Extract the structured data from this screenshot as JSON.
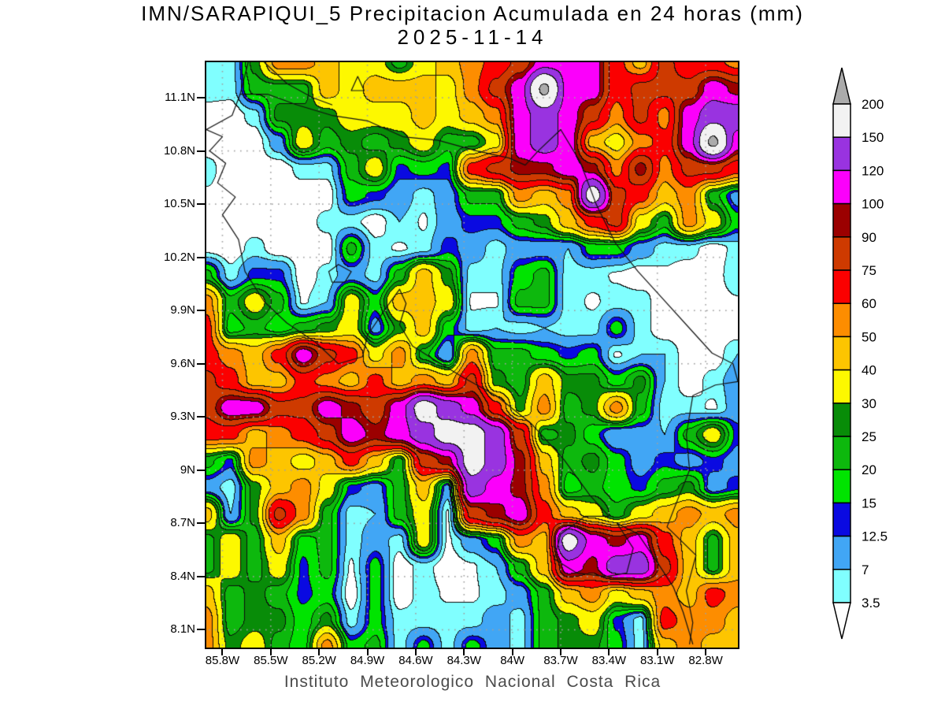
{
  "title": {
    "line1": "IMN/SARAPIQUI_5 Precipitacion Acumulada en 24 horas (mm)",
    "line2": "2025-11-14"
  },
  "footer": "Instituto Meteorologico Nacional Costa Rica",
  "axes": {
    "lat": [
      {
        "label": "11.1N",
        "value": 11.1
      },
      {
        "label": "10.8N",
        "value": 10.8
      },
      {
        "label": "10.5N",
        "value": 10.5
      },
      {
        "label": "10.2N",
        "value": 10.2
      },
      {
        "label": "9.9N",
        "value": 9.9
      },
      {
        "label": "9.6N",
        "value": 9.6
      },
      {
        "label": "9.3N",
        "value": 9.3
      },
      {
        "label": "9N",
        "value": 9.0
      },
      {
        "label": "8.7N",
        "value": 8.7
      },
      {
        "label": "8.4N",
        "value": 8.4
      },
      {
        "label": "8.1N",
        "value": 8.1
      }
    ],
    "lon": [
      {
        "label": "85.8W",
        "value": -85.8
      },
      {
        "label": "85.5W",
        "value": -85.5
      },
      {
        "label": "85.2W",
        "value": -85.2
      },
      {
        "label": "84.9W",
        "value": -84.9
      },
      {
        "label": "84.6W",
        "value": -84.6
      },
      {
        "label": "84.3W",
        "value": -84.3
      },
      {
        "label": "84W",
        "value": -84.0
      },
      {
        "label": "83.7W",
        "value": -83.7
      },
      {
        "label": "83.4W",
        "value": -83.4
      },
      {
        "label": "83.1W",
        "value": -83.1
      },
      {
        "label": "82.8W",
        "value": -82.8
      }
    ]
  },
  "colorbar": {
    "boundary_labels_top_down": [
      "200",
      "150",
      "120",
      "100",
      "90",
      "75",
      "60",
      "50",
      "40",
      "30",
      "25",
      "20",
      "15",
      "12.5",
      "7",
      "3.5"
    ],
    "box_colors_top_down": [
      "#f2f2f2",
      "#9933e0",
      "#fb00fb",
      "#9b0000",
      "#ce3a00",
      "#fb0000",
      "#fd8d00",
      "#fdc500",
      "#fdf800",
      "#088c08",
      "#0db80d",
      "#00e400",
      "#0a0ae1",
      "#41a6f5",
      "#80ffff"
    ],
    "over_color": "#ababab",
    "under_color": "#ffffff"
  },
  "chart_data": {
    "type": "heatmap",
    "units": "mm",
    "lon_range": [
      -85.9,
      -82.6
    ],
    "lat_range": [
      8.0,
      11.3
    ],
    "levels": [
      3.5,
      7,
      12.5,
      15,
      20,
      25,
      30,
      40,
      50,
      60,
      75,
      90,
      100,
      120,
      150,
      200
    ],
    "palette": [
      "#ffffff",
      "#80ffff",
      "#41a6f5",
      "#0a0ae1",
      "#00e400",
      "#0db80d",
      "#088c08",
      "#fdf800",
      "#fdc500",
      "#fd8d00",
      "#fb0000",
      "#ce3a00",
      "#9b0000",
      "#fb00fb",
      "#9933e0",
      "#f2f2f2",
      "#ababab"
    ],
    "grid_note": "precip mm, rows north(11.3N) to south(8.0N), cols west(85.9W) to east(82.6W), 0.15 deg spacing",
    "grid": [
      [
        5,
        5,
        27,
        55,
        55,
        45,
        35,
        35,
        22,
        35,
        45,
        55,
        65,
        80,
        110,
        110,
        110,
        65,
        45,
        80,
        65,
        65,
        55
      ],
      [
        5,
        5,
        22,
        22,
        22,
        45,
        35,
        45,
        45,
        45,
        35,
        55,
        80,
        110,
        210,
        110,
        110,
        65,
        80,
        80,
        80,
        110,
        95
      ],
      [
        2,
        1,
        5,
        27,
        27,
        27,
        35,
        35,
        35,
        45,
        35,
        45,
        55,
        110,
        135,
        110,
        80,
        55,
        80,
        55,
        110,
        135,
        135
      ],
      [
        1,
        1,
        1,
        10,
        35,
        22,
        27,
        22,
        27,
        35,
        22,
        22,
        35,
        110,
        135,
        110,
        45,
        35,
        55,
        65,
        110,
        210,
        110
      ],
      [
        5,
        1,
        1,
        1,
        5,
        5,
        22,
        35,
        14,
        17,
        14,
        65,
        80,
        95,
        95,
        110,
        95,
        55,
        95,
        55,
        80,
        80,
        65
      ],
      [
        3,
        1,
        1,
        1,
        1,
        1,
        17,
        14,
        10,
        5,
        10,
        22,
        22,
        55,
        45,
        55,
        170,
        80,
        65,
        45,
        55,
        22,
        10
      ],
      [
        1,
        1,
        1,
        1,
        1,
        5,
        5,
        1,
        7,
        3,
        10,
        14,
        14,
        22,
        27,
        45,
        65,
        80,
        35,
        22,
        55,
        35,
        17
      ],
      [
        2,
        1,
        5,
        1,
        1,
        1,
        22,
        5,
        3,
        5,
        14,
        10,
        5,
        10,
        10,
        7,
        17,
        17,
        10,
        5,
        5,
        1,
        5
      ],
      [
        22,
        5,
        14,
        14,
        1,
        5,
        10,
        5,
        22,
        45,
        27,
        5,
        5,
        17,
        22,
        5,
        5,
        3,
        1,
        3,
        1,
        1,
        7
      ],
      [
        55,
        22,
        35,
        22,
        3,
        7,
        35,
        17,
        45,
        45,
        35,
        3,
        3,
        22,
        22,
        5,
        3,
        5,
        5,
        1,
        1,
        1,
        3
      ],
      [
        65,
        17,
        22,
        17,
        22,
        27,
        35,
        10,
        27,
        45,
        17,
        5,
        7,
        5,
        7,
        5,
        5,
        17,
        5,
        1,
        1,
        1,
        1
      ],
      [
        65,
        55,
        45,
        65,
        110,
        80,
        65,
        35,
        55,
        22,
        7,
        55,
        22,
        22,
        17,
        14,
        17,
        3,
        7,
        7,
        1,
        1,
        7
      ],
      [
        80,
        65,
        45,
        45,
        65,
        55,
        45,
        65,
        45,
        55,
        45,
        80,
        27,
        22,
        45,
        27,
        27,
        17,
        27,
        7,
        1,
        5,
        10
      ],
      [
        80,
        110,
        110,
        80,
        80,
        110,
        95,
        80,
        110,
        170,
        135,
        110,
        65,
        27,
        55,
        22,
        27,
        55,
        22,
        5,
        5,
        3,
        10
      ],
      [
        65,
        65,
        45,
        55,
        65,
        80,
        110,
        95,
        110,
        135,
        170,
        170,
        135,
        80,
        22,
        27,
        17,
        7,
        10,
        7,
        22,
        35,
        14
      ],
      [
        22,
        14,
        55,
        45,
        35,
        45,
        65,
        45,
        22,
        80,
        95,
        170,
        135,
        95,
        45,
        22,
        27,
        17,
        10,
        14,
        10,
        14,
        10
      ],
      [
        10,
        5,
        27,
        45,
        55,
        35,
        14,
        10,
        22,
        45,
        10,
        135,
        110,
        95,
        55,
        17,
        22,
        17,
        14,
        22,
        27,
        10,
        14
      ],
      [
        45,
        7,
        27,
        80,
        55,
        22,
        5,
        7,
        22,
        35,
        3,
        80,
        95,
        110,
        65,
        45,
        35,
        22,
        35,
        45,
        55,
        45,
        55
      ],
      [
        22,
        35,
        22,
        45,
        17,
        22,
        5,
        10,
        5,
        35,
        3,
        10,
        17,
        55,
        45,
        170,
        110,
        95,
        110,
        65,
        45,
        22,
        45
      ],
      [
        22,
        35,
        22,
        35,
        14,
        22,
        3,
        17,
        1,
        5,
        1,
        3,
        7,
        22,
        45,
        110,
        95,
        135,
        135,
        80,
        45,
        22,
        45
      ],
      [
        45,
        22,
        27,
        22,
        14,
        17,
        1,
        17,
        1,
        5,
        3,
        3,
        5,
        10,
        22,
        45,
        55,
        35,
        45,
        55,
        45,
        65,
        55
      ],
      [
        55,
        22,
        27,
        27,
        17,
        27,
        5,
        17,
        5,
        5,
        5,
        5,
        10,
        5,
        22,
        27,
        35,
        14,
        5,
        65,
        55,
        55,
        45
      ],
      [
        55,
        27,
        35,
        22,
        17,
        55,
        17,
        22,
        5,
        17,
        5,
        17,
        10,
        5,
        22,
        27,
        27,
        17,
        5,
        45,
        55,
        45,
        45
      ]
    ],
    "coastlines": [
      [
        [
          -85.64,
          11.3
        ],
        [
          -85.69,
          11.12
        ],
        [
          -85.74,
          11.0
        ],
        [
          -85.9,
          10.92
        ],
        [
          -85.8,
          10.88
        ],
        [
          -85.88,
          10.8
        ],
        [
          -85.78,
          10.73
        ],
        [
          -85.83,
          10.62
        ],
        [
          -85.72,
          10.54
        ],
        [
          -85.8,
          10.44
        ],
        [
          -85.7,
          10.3
        ],
        [
          -85.66,
          10.12
        ],
        [
          -85.54,
          9.95
        ],
        [
          -85.4,
          9.83
        ],
        [
          -85.22,
          9.72
        ],
        [
          -85.08,
          9.6
        ],
        [
          -84.93,
          9.64
        ],
        [
          -84.9,
          9.76
        ],
        [
          -84.78,
          9.92
        ],
        [
          -84.7,
          10.02
        ],
        [
          -84.66,
          9.94
        ],
        [
          -84.7,
          9.82
        ],
        [
          -84.62,
          9.7
        ],
        [
          -84.48,
          9.62
        ],
        [
          -84.3,
          9.52
        ],
        [
          -84.1,
          9.42
        ],
        [
          -83.88,
          9.26
        ],
        [
          -83.68,
          9.06
        ],
        [
          -83.52,
          8.86
        ],
        [
          -83.4,
          8.74
        ],
        [
          -83.55,
          8.74
        ],
        [
          -83.7,
          8.64
        ],
        [
          -83.74,
          8.5
        ],
        [
          -83.6,
          8.42
        ],
        [
          -83.42,
          8.4
        ],
        [
          -83.29,
          8.42
        ],
        [
          -83.25,
          8.56
        ],
        [
          -83.35,
          8.7
        ],
        [
          -83.22,
          8.64
        ],
        [
          -83.1,
          8.48
        ],
        [
          -83.0,
          8.34
        ],
        [
          -82.94,
          8.2
        ],
        [
          -82.88,
          8.02
        ]
      ],
      [
        [
          -85.69,
          11.12
        ],
        [
          -85.52,
          11.12
        ],
        [
          -85.34,
          11.06
        ],
        [
          -85.12,
          11.0
        ],
        [
          -84.9,
          10.97
        ],
        [
          -84.68,
          10.88
        ],
        [
          -84.46,
          10.86
        ],
        [
          -84.22,
          10.8
        ],
        [
          -84.02,
          10.76
        ],
        [
          -83.92,
          10.72
        ],
        [
          -83.84,
          10.8
        ],
        [
          -83.7,
          10.92
        ]
      ],
      [
        [
          -83.7,
          10.92
        ],
        [
          -83.58,
          10.74
        ],
        [
          -83.48,
          10.5
        ],
        [
          -83.36,
          10.28
        ],
        [
          -83.22,
          10.12
        ],
        [
          -83.08,
          9.98
        ],
        [
          -82.9,
          9.8
        ],
        [
          -82.76,
          9.66
        ],
        [
          -82.63,
          9.6
        ],
        [
          -82.6,
          9.5
        ]
      ],
      [
        [
          -82.6,
          9.5
        ],
        [
          -82.74,
          9.48
        ],
        [
          -82.88,
          9.42
        ],
        [
          -82.92,
          9.2
        ],
        [
          -82.9,
          9.0
        ],
        [
          -82.98,
          8.82
        ],
        [
          -83.04,
          8.68
        ],
        [
          -82.86,
          8.52
        ],
        [
          -82.92,
          8.32
        ],
        [
          -82.88,
          8.14
        ],
        [
          -82.9,
          8.02
        ]
      ],
      [
        [
          -85.54,
          11.3
        ],
        [
          -85.4,
          11.18
        ],
        [
          -85.24,
          11.1
        ],
        [
          -85.12,
          11.06
        ]
      ],
      [
        [
          -85.0,
          11.14
        ],
        [
          -84.96,
          11.22
        ],
        [
          -84.92,
          11.14
        ],
        [
          -85.0,
          11.14
        ]
      ],
      [
        [
          -85.14,
          10.12
        ],
        [
          -85.08,
          10.16
        ],
        [
          -85.0,
          10.12
        ],
        [
          -85.04,
          10.06
        ],
        [
          -85.12,
          10.06
        ],
        [
          -85.14,
          10.12
        ]
      ]
    ]
  }
}
